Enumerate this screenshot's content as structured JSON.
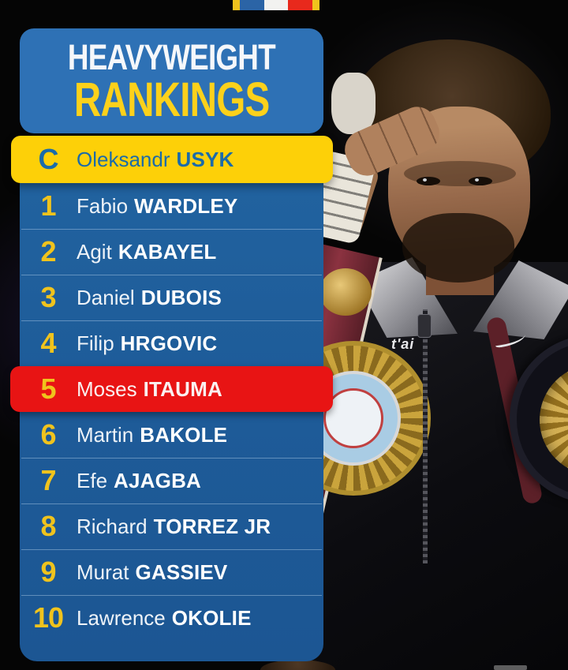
{
  "title": {
    "line1": "HEAVYWEIGHT",
    "line2": "RANKINGS"
  },
  "flag": {
    "icon": "french-flag-banner",
    "stripe_colors": [
      "#f0c31d",
      "#2b64a6",
      "#f2f2f0",
      "#e8291c",
      "#f0c31d"
    ]
  },
  "rankings": [
    {
      "rank": "C",
      "first": "Oleksandr",
      "last": "USYK",
      "highlight": "champion-yellow"
    },
    {
      "rank": "1",
      "first": "Fabio",
      "last": "WARDLEY",
      "highlight": "none"
    },
    {
      "rank": "2",
      "first": "Agit",
      "last": "KABAYEL",
      "highlight": "none"
    },
    {
      "rank": "3",
      "first": "Daniel",
      "last": "DUBOIS",
      "highlight": "none"
    },
    {
      "rank": "4",
      "first": "Filip",
      "last": "HRGOVIC",
      "highlight": "none"
    },
    {
      "rank": "5",
      "first": "Moses",
      "last": "ITAUMA",
      "highlight": "red"
    },
    {
      "rank": "6",
      "first": "Martin",
      "last": "BAKOLE",
      "highlight": "none"
    },
    {
      "rank": "7",
      "first": "Efe",
      "last": "AJAGBA",
      "highlight": "none"
    },
    {
      "rank": "8",
      "first": "Richard",
      "last": "TORREZ JR",
      "highlight": "none"
    },
    {
      "rank": "9",
      "first": "Murat",
      "last": "GASSIEV",
      "highlight": "none"
    },
    {
      "rank": "10",
      "first": "Lawrence",
      "last": "OKOLIE",
      "highlight": "none"
    }
  ],
  "photo": {
    "subject": "boxer-saluting-with-championship-belts",
    "jacket_text": "t'ai",
    "brand_icon": "nike-swoosh"
  },
  "colors": {
    "background": "#050505",
    "title_box_blue": "#2e71b5",
    "panel_blue": "#1e5c99",
    "champion_yellow": "#fdd008",
    "number_yellow": "#f0c31d",
    "title_yellow": "#fcd11b",
    "highlight_red": "#e81414",
    "name_white": "#ffffff",
    "champion_text_blue": "#1b6ba9"
  }
}
